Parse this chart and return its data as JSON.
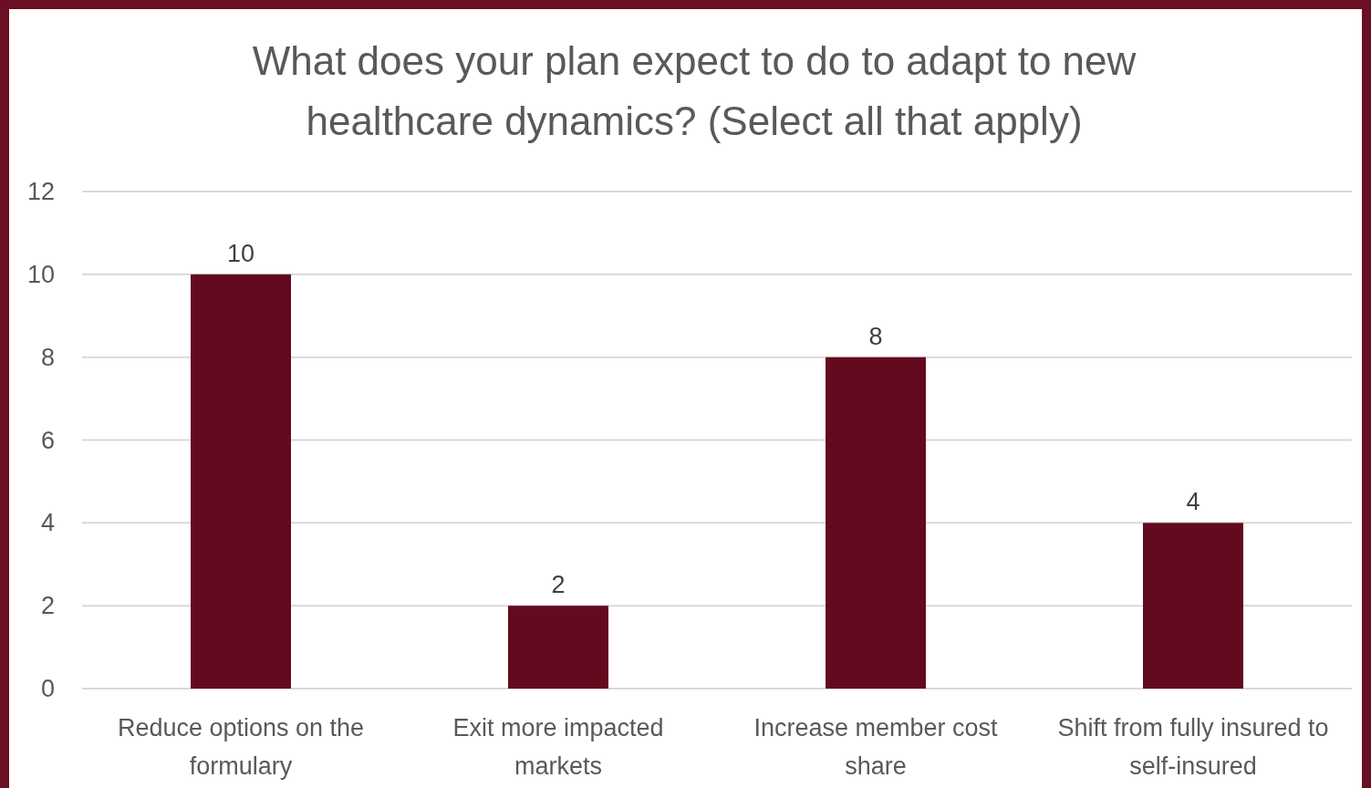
{
  "chart_data": {
    "type": "bar",
    "title": "What does your plan expect to do to adapt to new healthcare dynamics? (Select all that apply)",
    "categories": [
      "Reduce options on the formulary",
      "Exit more impacted markets",
      "Increase member cost share",
      "Shift from fully insured to self-insured"
    ],
    "values": [
      10,
      2,
      8,
      4
    ],
    "color": "#630a1f",
    "ylim": [
      0,
      12
    ],
    "yticks": [
      0,
      2,
      4,
      6,
      8,
      10,
      12
    ],
    "grid": "y",
    "data_labels": true
  }
}
